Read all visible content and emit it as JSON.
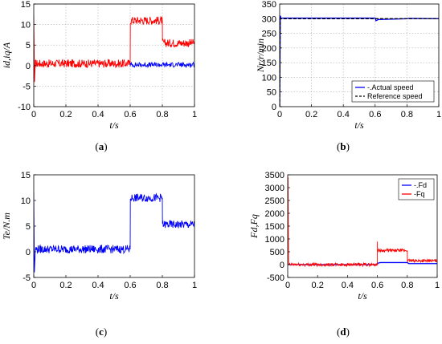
{
  "figure": {
    "panels": [
      {
        "caption_open": "(",
        "caption_letter": "a",
        "caption_close": ")"
      },
      {
        "caption_open": "(",
        "caption_letter": "b",
        "caption_close": ")"
      },
      {
        "caption_open": "(",
        "caption_letter": "c",
        "caption_close": ")"
      },
      {
        "caption_open": "(",
        "caption_letter": "d",
        "caption_close": ")"
      }
    ]
  },
  "chart_data": [
    {
      "type": "line",
      "panel": "a",
      "xlabel": "t/s",
      "ylabel": "id,iq/A",
      "xlim": [
        0,
        1
      ],
      "ylim": [
        -10,
        15
      ],
      "xticks": [
        "0",
        "0.2",
        "0.4",
        "0.6",
        "0.8",
        "1"
      ],
      "yticks": [
        "-10",
        "-5",
        "0",
        "5",
        "10",
        "15"
      ],
      "grid": true,
      "series": [
        {
          "color": "#ff0000",
          "noise": 1.0,
          "x": [
            0,
            0.005,
            0.01,
            0.6,
            0.601,
            0.8,
            0.801,
            1.0
          ],
          "y": [
            12,
            -4,
            0.5,
            0.5,
            11,
            11,
            5.5,
            5.5
          ]
        },
        {
          "color": "#0000ff",
          "noise": 0.6,
          "x": [
            0.6,
            1.0
          ],
          "y": [
            0.2,
            0.2
          ]
        }
      ]
    },
    {
      "type": "line",
      "panel": "b",
      "xlabel": "t/s",
      "ylabel": "Nr/r/min",
      "xlim": [
        0,
        1
      ],
      "ylim": [
        0,
        350
      ],
      "xticks": [
        "0",
        "0.2",
        "0.4",
        "0.6",
        "0.8",
        "1"
      ],
      "yticks": [
        "0",
        "50",
        "100",
        "150",
        "200",
        "250",
        "300",
        "350"
      ],
      "grid": true,
      "legend": {
        "position": "bottom-right",
        "entries": [
          "-.Actual speed",
          "Reference speed"
        ]
      },
      "series": [
        {
          "name": "-.Actual speed",
          "color": "#0000ff",
          "noise": 0,
          "x": [
            0,
            0.004,
            0.01,
            0.02,
            0.6,
            0.605,
            0.62,
            0.8,
            0.81,
            1.0
          ],
          "y": [
            0,
            310,
            300,
            302,
            302,
            293,
            297,
            300,
            301,
            300
          ]
        },
        {
          "name": "Reference speed",
          "color": "#000000",
          "noise": 0,
          "dash": true,
          "x": [
            0,
            0.003,
            1.0
          ],
          "y": [
            0,
            300,
            300
          ]
        }
      ]
    },
    {
      "type": "line",
      "panel": "c",
      "xlabel": "t/s",
      "ylabel": "Te/N.m",
      "xlim": [
        0,
        1
      ],
      "ylim": [
        -5,
        15
      ],
      "xticks": [
        "0",
        "0.2",
        "0.4",
        "0.6",
        "0.8",
        "1"
      ],
      "yticks": [
        "-5",
        "0",
        "5",
        "10",
        "15"
      ],
      "grid": false,
      "series": [
        {
          "color": "#0000ff",
          "noise": 0.8,
          "x": [
            0,
            0.004,
            0.01,
            0.6,
            0.601,
            0.8,
            0.801,
            1.0
          ],
          "y": [
            11.5,
            -4,
            0.5,
            0.5,
            10.5,
            10.5,
            5.3,
            5.3
          ]
        }
      ]
    },
    {
      "type": "line",
      "panel": "d",
      "xlabel": "t/s",
      "ylabel": "Fd,Fq",
      "xlim": [
        0,
        1
      ],
      "ylim": [
        -500,
        3500
      ],
      "xticks": [
        "0",
        "0.2",
        "0.4",
        "0.6",
        "0.8",
        "1"
      ],
      "yticks": [
        "-500",
        "0",
        "500",
        "1000",
        "1500",
        "2000",
        "2500",
        "3000",
        "3500"
      ],
      "grid": false,
      "legend": {
        "position": "top-right",
        "entries": [
          "-.Fd",
          "-Fq"
        ]
      },
      "series": [
        {
          "name": "-.Fd",
          "color": "#0000ff",
          "noise": 0,
          "x": [
            0,
            0.6,
            0.6,
            0.62,
            0.8,
            0.81,
            1.0
          ],
          "y": [
            0,
            0,
            50,
            80,
            80,
            40,
            40
          ]
        },
        {
          "name": "-Fq",
          "color": "#ff0000",
          "noise": 60,
          "x": [
            0,
            0.002,
            0.006,
            0.6,
            0.6,
            0.601,
            0.8,
            0.801,
            1.0
          ],
          "y": [
            3400,
            3400,
            0,
            0,
            900,
            550,
            550,
            150,
            150
          ]
        }
      ]
    }
  ]
}
